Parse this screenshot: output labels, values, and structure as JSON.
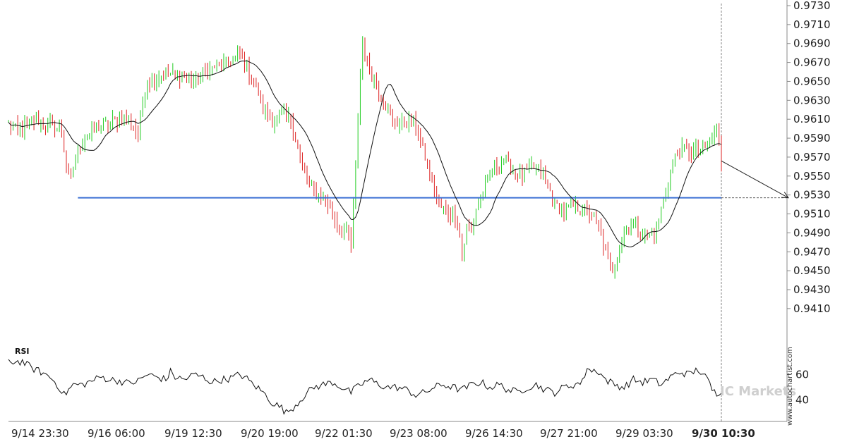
{
  "chart_data": {
    "type": "candlestick",
    "price_axis": {
      "ylim": [
        0.9395,
        0.973
      ],
      "tick_labels": [
        "0.9730",
        "0.9710",
        "0.9690",
        "0.9670",
        "0.9650",
        "0.9630",
        "0.9610",
        "0.9590",
        "0.9570",
        "0.9550",
        "0.9530",
        "0.9510",
        "0.9490",
        "0.9470",
        "0.9450",
        "0.9430",
        "0.9410"
      ]
    },
    "x_axis": {
      "tick_labels": [
        "9/14 23:30",
        "9/16 06:00",
        "9/19 12:30",
        "9/20 19:00",
        "9/22 01:30",
        "9/23 08:00",
        "9/26 14:30",
        "9/27 21:00",
        "9/29 03:30",
        "9/30 10:30"
      ],
      "highlighted_tick": "9/30 10:30"
    },
    "colors": {
      "up": "#22cc22",
      "down": "#dd2222",
      "moving_average": "#111111",
      "level_line": "#3b6fd4",
      "rsi": "#111111"
    },
    "level_line": {
      "value": 0.9527
    },
    "forecast": {
      "from_value": 0.9566,
      "to_value": 0.9527
    },
    "price_anchors": [
      [
        0,
        0.9605
      ],
      [
        4,
        0.9598
      ],
      [
        8,
        0.9604
      ],
      [
        12,
        0.961
      ],
      [
        16,
        0.9605
      ],
      [
        20,
        0.9602
      ],
      [
        23,
        0.9598
      ],
      [
        25,
        0.956
      ],
      [
        27,
        0.9545
      ],
      [
        29,
        0.9572
      ],
      [
        33,
        0.959
      ],
      [
        37,
        0.9598
      ],
      [
        42,
        0.9605
      ],
      [
        46,
        0.9608
      ],
      [
        50,
        0.9612
      ],
      [
        54,
        0.9604
      ],
      [
        56,
        0.959
      ],
      [
        58,
        0.963
      ],
      [
        60,
        0.965
      ],
      [
        64,
        0.9655
      ],
      [
        70,
        0.9658
      ],
      [
        76,
        0.9656
      ],
      [
        80,
        0.965
      ],
      [
        84,
        0.966
      ],
      [
        88,
        0.9664
      ],
      [
        92,
        0.9668
      ],
      [
        96,
        0.9672
      ],
      [
        100,
        0.9676
      ],
      [
        102,
        0.9668
      ],
      [
        105,
        0.9655
      ],
      [
        108,
        0.964
      ],
      [
        110,
        0.962
      ],
      [
        114,
        0.9608
      ],
      [
        118,
        0.9614
      ],
      [
        122,
        0.961
      ],
      [
        124,
        0.959
      ],
      [
        127,
        0.956
      ],
      [
        130,
        0.954
      ],
      [
        134,
        0.953
      ],
      [
        138,
        0.952
      ],
      [
        141,
        0.9505
      ],
      [
        144,
        0.9495
      ],
      [
        147,
        0.9488
      ],
      [
        148,
        0.9475
      ],
      [
        150,
        0.956
      ],
      [
        152,
        0.966
      ],
      [
        153,
        0.969
      ],
      [
        155,
        0.967
      ],
      [
        158,
        0.965
      ],
      [
        162,
        0.963
      ],
      [
        166,
        0.9608
      ],
      [
        170,
        0.9605
      ],
      [
        174,
        0.9612
      ],
      [
        177,
        0.9595
      ],
      [
        180,
        0.957
      ],
      [
        183,
        0.9545
      ],
      [
        186,
        0.952
      ],
      [
        190,
        0.9512
      ],
      [
        194,
        0.9505
      ],
      [
        196,
        0.9465
      ],
      [
        198,
        0.9495
      ],
      [
        200,
        0.949
      ],
      [
        202,
        0.9515
      ],
      [
        206,
        0.954
      ],
      [
        210,
        0.956
      ],
      [
        214,
        0.9565
      ],
      [
        218,
        0.9555
      ],
      [
        222,
        0.955
      ],
      [
        226,
        0.956
      ],
      [
        230,
        0.9555
      ],
      [
        233,
        0.954
      ],
      [
        236,
        0.952
      ],
      [
        240,
        0.9512
      ],
      [
        244,
        0.9518
      ],
      [
        248,
        0.9515
      ],
      [
        252,
        0.951
      ],
      [
        255,
        0.9495
      ],
      [
        258,
        0.947
      ],
      [
        260,
        0.945
      ],
      [
        262,
        0.9455
      ],
      [
        264,
        0.948
      ],
      [
        268,
        0.95
      ],
      [
        272,
        0.9495
      ],
      [
        276,
        0.9485
      ],
      [
        280,
        0.949
      ],
      [
        282,
        0.9515
      ],
      [
        285,
        0.9545
      ],
      [
        288,
        0.957
      ],
      [
        292,
        0.958
      ],
      [
        296,
        0.9575
      ],
      [
        300,
        0.958
      ],
      [
        304,
        0.959
      ],
      [
        306,
        0.96
      ],
      [
        307,
        0.9585
      ],
      [
        308,
        0.9566
      ]
    ],
    "series": [
      {
        "type": "moving_average"
      }
    ],
    "rsi": {
      "label": "RSI",
      "ylim": [
        25,
        80
      ],
      "tick_labels": [
        "60",
        "40"
      ],
      "anchors": [
        [
          0,
          70
        ],
        [
          6,
          70
        ],
        [
          10,
          65
        ],
        [
          14,
          62
        ],
        [
          18,
          58
        ],
        [
          22,
          50
        ],
        [
          24,
          44
        ],
        [
          28,
          52
        ],
        [
          32,
          52
        ],
        [
          36,
          55
        ],
        [
          40,
          58
        ],
        [
          44,
          56
        ],
        [
          48,
          55
        ],
        [
          52,
          53
        ],
        [
          56,
          55
        ],
        [
          60,
          60
        ],
        [
          64,
          58
        ],
        [
          68,
          56
        ],
        [
          70,
          62
        ],
        [
          72,
          58
        ],
        [
          76,
          56
        ],
        [
          80,
          60
        ],
        [
          84,
          58
        ],
        [
          88,
          54
        ],
        [
          92,
          56
        ],
        [
          96,
          57
        ],
        [
          100,
          60
        ],
        [
          102,
          58
        ],
        [
          106,
          52
        ],
        [
          110,
          46
        ],
        [
          114,
          38
        ],
        [
          118,
          34
        ],
        [
          120,
          30
        ],
        [
          124,
          36
        ],
        [
          128,
          44
        ],
        [
          132,
          50
        ],
        [
          136,
          52
        ],
        [
          140,
          54
        ],
        [
          144,
          50
        ],
        [
          148,
          46
        ],
        [
          152,
          52
        ],
        [
          156,
          56
        ],
        [
          160,
          52
        ],
        [
          164,
          50
        ],
        [
          168,
          50
        ],
        [
          172,
          48
        ],
        [
          176,
          44
        ],
        [
          180,
          46
        ],
        [
          184,
          50
        ],
        [
          188,
          52
        ],
        [
          192,
          50
        ],
        [
          196,
          48
        ],
        [
          200,
          52
        ],
        [
          204,
          54
        ],
        [
          208,
          50
        ],
        [
          212,
          52
        ],
        [
          216,
          48
        ],
        [
          220,
          46
        ],
        [
          224,
          50
        ],
        [
          228,
          52
        ],
        [
          232,
          48
        ],
        [
          236,
          46
        ],
        [
          240,
          50
        ],
        [
          244,
          52
        ],
        [
          248,
          54
        ],
        [
          250,
          66
        ],
        [
          252,
          62
        ],
        [
          254,
          64
        ],
        [
          258,
          56
        ],
        [
          262,
          52
        ],
        [
          266,
          50
        ],
        [
          270,
          56
        ],
        [
          274,
          54
        ],
        [
          278,
          56
        ],
        [
          282,
          52
        ],
        [
          286,
          58
        ],
        [
          290,
          62
        ],
        [
          294,
          60
        ],
        [
          298,
          64
        ],
        [
          302,
          56
        ],
        [
          304,
          48
        ],
        [
          306,
          45
        ],
        [
          308,
          48
        ]
      ]
    },
    "watermark": "IC Markets",
    "source": "www.autochartist.com"
  }
}
